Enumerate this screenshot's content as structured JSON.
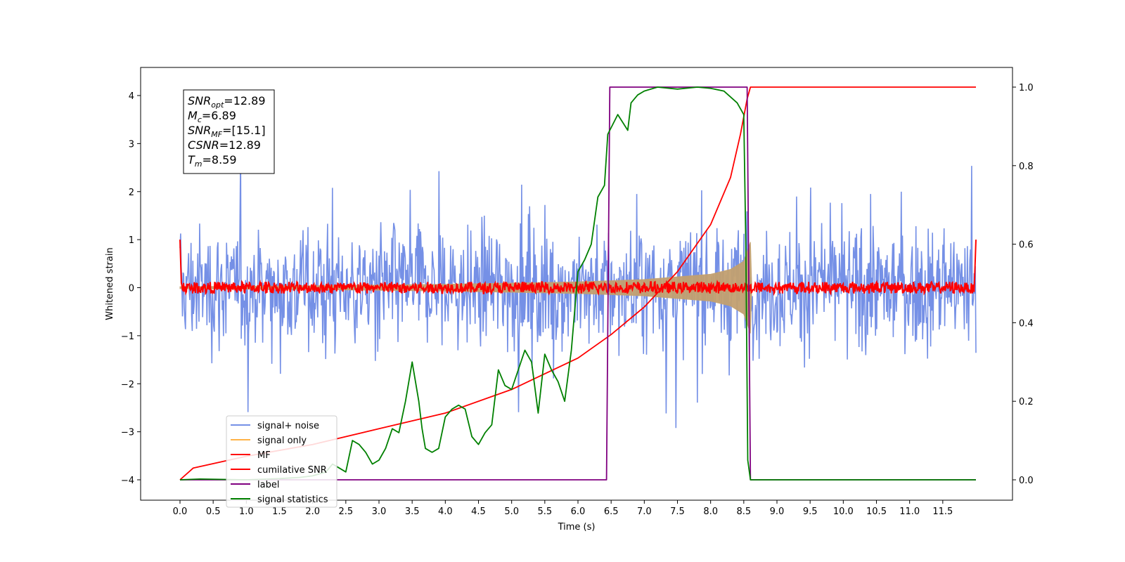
{
  "chart_data": {
    "type": "line",
    "xlabel": "Time (s)",
    "ylabel": "Whitened strain",
    "xlim": [
      0,
      12
    ],
    "ylim": [
      -4.3,
      4.6
    ],
    "y2lim": [
      -0.05,
      1.05
    ],
    "x_ticks": [
      "0.0",
      "0.5",
      "1.0",
      "1.5",
      "2.0",
      "2.5",
      "3.0",
      "3.5",
      "4.0",
      "4.5",
      "5.0",
      "5.5",
      "6.0",
      "6.5",
      "7.0",
      "7.5",
      "8.0",
      "8.5",
      "9.0",
      "9.5",
      "10.0",
      "10.5",
      "11.0",
      "11.5"
    ],
    "y_ticks": [
      "4",
      "3",
      "2",
      "1",
      "0",
      "−1",
      "−2",
      "−3",
      "−4"
    ],
    "y2_ticks": [
      "1.0",
      "0.8",
      "0.6",
      "0.4",
      "0.2",
      "0.0"
    ],
    "annotation": {
      "lines": [
        {
          "main": "SNR",
          "sub": "opt",
          "rest": "=12.89"
        },
        {
          "main": "M",
          "sub": "c",
          "rest": "=6.89"
        },
        {
          "main": "SNR",
          "sub": "MF",
          "rest": "=[15.1]"
        },
        {
          "main": "CSNR",
          "sub": "",
          "rest": "=12.89"
        },
        {
          "main": "T",
          "sub": "m",
          "rest": "=8.59"
        }
      ]
    },
    "legend": {
      "placement": "lower-left",
      "entries": [
        {
          "label": "signal+ noise",
          "color": "#7590e6"
        },
        {
          "label": "signal only",
          "color": "#ffb347"
        },
        {
          "label": "MF",
          "color": "#ff0000"
        },
        {
          "label": "cumilative SNR",
          "color": "#ff0000"
        },
        {
          "label": "label",
          "color": "#800080"
        },
        {
          "label": "signal statistics",
          "color": "#008000"
        }
      ]
    },
    "series": [
      {
        "name": "signal+ noise",
        "axis": "left",
        "color": "#7590e6",
        "kind": "noise",
        "amplitude_range": [
          -4.0,
          4.1
        ],
        "x_range": [
          0,
          12
        ]
      },
      {
        "name": "signal only",
        "axis": "left",
        "color": "#c2a070",
        "kind": "chirp",
        "envelope": [
          [
            0,
            0.02
          ],
          [
            2,
            0.04
          ],
          [
            4,
            0.07
          ],
          [
            6,
            0.12
          ],
          [
            7,
            0.17
          ],
          [
            8,
            0.28
          ],
          [
            8.3,
            0.38
          ],
          [
            8.5,
            0.55
          ],
          [
            8.6,
            0.95
          ],
          [
            8.62,
            0
          ]
        ]
      },
      {
        "name": "MF",
        "axis": "left",
        "color": "#ff0000",
        "kind": "noise",
        "amplitude_range": [
          -0.12,
          0.12
        ],
        "edge_value": 1.0
      },
      {
        "name": "cumilative SNR",
        "axis": "right",
        "color": "#ff0000",
        "points": [
          [
            0,
            0
          ],
          [
            0.2,
            0.03
          ],
          [
            1,
            0.06
          ],
          [
            2,
            0.09
          ],
          [
            3,
            0.13
          ],
          [
            4,
            0.17
          ],
          [
            5,
            0.23
          ],
          [
            6,
            0.31
          ],
          [
            6.5,
            0.37
          ],
          [
            7,
            0.44
          ],
          [
            7.5,
            0.53
          ],
          [
            8,
            0.65
          ],
          [
            8.3,
            0.77
          ],
          [
            8.45,
            0.88
          ],
          [
            8.55,
            0.97
          ],
          [
            8.6,
            1.0
          ],
          [
            12,
            1.0
          ]
        ]
      },
      {
        "name": "label",
        "axis": "right",
        "color": "#800080",
        "points": [
          [
            0,
            0
          ],
          [
            6.43,
            0
          ],
          [
            6.48,
            1
          ],
          [
            8.55,
            1
          ],
          [
            8.6,
            0
          ],
          [
            12,
            0
          ]
        ]
      },
      {
        "name": "signal statistics",
        "axis": "right",
        "color": "#008000",
        "points": [
          [
            0,
            0
          ],
          [
            0.3,
            0.002
          ],
          [
            1,
            0
          ],
          [
            1.5,
            0.003
          ],
          [
            1.8,
            0.006
          ],
          [
            2,
            0.01
          ],
          [
            2.2,
            0.02
          ],
          [
            2.3,
            0.04
          ],
          [
            2.4,
            0.03
          ],
          [
            2.5,
            0.02
          ],
          [
            2.6,
            0.1
          ],
          [
            2.7,
            0.09
          ],
          [
            2.8,
            0.07
          ],
          [
            2.9,
            0.04
          ],
          [
            3.0,
            0.05
          ],
          [
            3.1,
            0.08
          ],
          [
            3.2,
            0.13
          ],
          [
            3.3,
            0.12
          ],
          [
            3.4,
            0.2
          ],
          [
            3.5,
            0.3
          ],
          [
            3.6,
            0.2
          ],
          [
            3.65,
            0.13
          ],
          [
            3.7,
            0.08
          ],
          [
            3.8,
            0.07
          ],
          [
            3.9,
            0.08
          ],
          [
            4.0,
            0.16
          ],
          [
            4.1,
            0.18
          ],
          [
            4.2,
            0.19
          ],
          [
            4.3,
            0.18
          ],
          [
            4.4,
            0.11
          ],
          [
            4.5,
            0.09
          ],
          [
            4.6,
            0.12
          ],
          [
            4.7,
            0.14
          ],
          [
            4.8,
            0.28
          ],
          [
            4.9,
            0.24
          ],
          [
            5.0,
            0.23
          ],
          [
            5.1,
            0.28
          ],
          [
            5.2,
            0.33
          ],
          [
            5.3,
            0.3
          ],
          [
            5.4,
            0.17
          ],
          [
            5.5,
            0.32
          ],
          [
            5.6,
            0.28
          ],
          [
            5.7,
            0.25
          ],
          [
            5.8,
            0.2
          ],
          [
            5.9,
            0.33
          ],
          [
            6.0,
            0.53
          ],
          [
            6.1,
            0.56
          ],
          [
            6.2,
            0.6
          ],
          [
            6.3,
            0.72
          ],
          [
            6.4,
            0.75
          ],
          [
            6.45,
            0.88
          ],
          [
            6.6,
            0.93
          ],
          [
            6.75,
            0.89
          ],
          [
            6.8,
            0.96
          ],
          [
            6.9,
            0.98
          ],
          [
            7.0,
            0.99
          ],
          [
            7.2,
            1.0
          ],
          [
            7.5,
            0.995
          ],
          [
            7.8,
            1.0
          ],
          [
            8.0,
            0.997
          ],
          [
            8.2,
            0.99
          ],
          [
            8.4,
            0.96
          ],
          [
            8.5,
            0.93
          ],
          [
            8.53,
            0.6
          ],
          [
            8.56,
            0.05
          ],
          [
            8.6,
            0.0
          ],
          [
            12,
            0.0
          ]
        ]
      }
    ]
  }
}
